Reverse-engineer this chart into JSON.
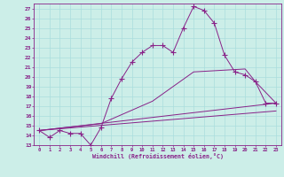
{
  "background_color": "#cceee8",
  "grid_color": "#aadddd",
  "line_color": "#882288",
  "marker": "+",
  "marker_size": 4,
  "xlabel": "Windchill (Refroidissement éolien,°C)",
  "xlim": [
    -0.5,
    23.5
  ],
  "ylim": [
    13,
    27.5
  ],
  "xtick_vals": [
    0,
    1,
    2,
    3,
    4,
    5,
    6,
    7,
    8,
    9,
    10,
    11,
    12,
    13,
    14,
    15,
    16,
    17,
    18,
    19,
    20,
    21,
    22,
    23
  ],
  "xtick_labels": [
    "0",
    "1",
    "2",
    "3",
    "4",
    "5",
    "6",
    "7",
    "8",
    "9",
    "10",
    "11",
    "12",
    "13",
    "14",
    "15",
    "16",
    "17",
    "18",
    "19",
    "20",
    "21",
    "22",
    "23"
  ],
  "ytick_vals": [
    13,
    14,
    15,
    16,
    17,
    18,
    19,
    20,
    21,
    22,
    23,
    24,
    25,
    26,
    27
  ],
  "ytick_labels": [
    "13",
    "14",
    "15",
    "16",
    "17",
    "18",
    "19",
    "20",
    "21",
    "22",
    "23",
    "24",
    "25",
    "26",
    "27"
  ],
  "series": [
    {
      "x": [
        0,
        1,
        2,
        3,
        4,
        5,
        6,
        7,
        8,
        9,
        10,
        11,
        12,
        13,
        14,
        15,
        16,
        17,
        18,
        19,
        20,
        21,
        22,
        23
      ],
      "y": [
        14.5,
        13.8,
        14.5,
        14.2,
        14.2,
        13.0,
        14.8,
        17.8,
        19.8,
        21.5,
        22.5,
        23.2,
        23.2,
        22.5,
        25.0,
        27.2,
        26.8,
        25.5,
        22.2,
        20.5,
        20.2,
        19.5,
        17.3,
        17.3
      ],
      "has_markers": true
    },
    {
      "x": [
        0,
        23
      ],
      "y": [
        14.5,
        17.3
      ],
      "has_markers": false
    },
    {
      "x": [
        0,
        23
      ],
      "y": [
        14.5,
        16.5
      ],
      "has_markers": false
    },
    {
      "x": [
        0,
        6,
        11,
        15,
        20,
        21,
        23
      ],
      "y": [
        14.5,
        15.2,
        17.5,
        20.5,
        20.8,
        19.5,
        17.3
      ],
      "has_markers": false
    }
  ]
}
